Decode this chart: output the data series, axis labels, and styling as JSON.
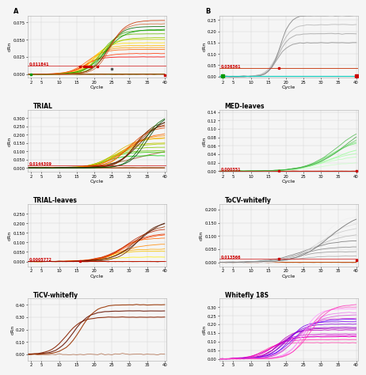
{
  "panels": [
    {
      "title": "",
      "label": "A",
      "ylabel": "dRn",
      "ylim": [
        -0.005,
        0.085
      ],
      "yticks": [
        0.0,
        0.025,
        0.05,
        0.075
      ],
      "ytick_labels": [
        "0.000",
        "0.025",
        "0.050",
        "0.075"
      ],
      "threshold_val": 0.011841,
      "threshold_label": "0.011841",
      "threshold_color": "#cc0000",
      "show_xlabel": true,
      "curve_type": "panel_A"
    },
    {
      "title": "",
      "label": "B",
      "ylabel": "dRn",
      "ylim": [
        -0.005,
        0.27
      ],
      "yticks": [
        0.0,
        0.05,
        0.1,
        0.15,
        0.2,
        0.25
      ],
      "ytick_labels": [
        "0.00",
        "0.05",
        "0.10",
        "0.15",
        "0.20",
        "0.25"
      ],
      "threshold_val": 0.036361,
      "threshold_label": "0.036361",
      "threshold_color": "#cc0000",
      "show_xlabel": true,
      "curve_type": "panel_B"
    },
    {
      "title": "TRIAL",
      "label": "",
      "ylabel": "dRn",
      "ylim": [
        -0.025,
        0.35
      ],
      "yticks": [
        0.0,
        0.05,
        0.1,
        0.15,
        0.2,
        0.25,
        0.3
      ],
      "ytick_labels": [
        "0.000",
        "0.050",
        "0.100",
        "0.150",
        "0.200",
        "0.250",
        "0.300"
      ],
      "threshold_val": 0.0144309,
      "threshold_label": "0.0144309",
      "threshold_color": "#cc0000",
      "show_xlabel": true,
      "curve_type": "panel_TRIAL"
    },
    {
      "title": "MED-leaves",
      "label": "",
      "ylabel": "dRn",
      "ylim": [
        -0.002,
        0.145
      ],
      "yticks": [
        0.0,
        0.02,
        0.04,
        0.06,
        0.08,
        0.1,
        0.12,
        0.14
      ],
      "ytick_labels": [
        "0.00",
        "0.02",
        "0.04",
        "0.06",
        "0.08",
        "0.10",
        "0.12",
        "0.14"
      ],
      "threshold_val": 0.000351,
      "threshold_label": "0.000351",
      "threshold_color": "#cc0000",
      "show_xlabel": true,
      "curve_type": "panel_MED"
    },
    {
      "title": "TRIAL-leaves",
      "label": "",
      "ylabel": "dRn",
      "ylim": [
        -0.025,
        0.3
      ],
      "yticks": [
        0.0,
        0.05,
        0.1,
        0.15,
        0.2,
        0.25
      ],
      "ytick_labels": [
        "0.000",
        "0.050",
        "0.100",
        "0.150",
        "0.200",
        "0.250"
      ],
      "threshold_val": 0.0005772,
      "threshold_label": "0.0005772",
      "threshold_color": "#cc0000",
      "show_xlabel": true,
      "curve_type": "panel_TRIALleaves"
    },
    {
      "title": "ToCV-whitefly",
      "label": "",
      "ylabel": "dRn",
      "ylim": [
        -0.015,
        0.22
      ],
      "yticks": [
        0.0,
        0.05,
        0.1,
        0.15,
        0.2
      ],
      "ytick_labels": [
        "0.000",
        "0.050",
        "0.100",
        "0.150",
        "0.200"
      ],
      "threshold_val": 0.013566,
      "threshold_label": "0.013566",
      "threshold_color": "#cc0000",
      "show_xlabel": true,
      "curve_type": "panel_ToCV"
    },
    {
      "title": "TiCV-whitefly",
      "label": "",
      "ylabel": "dRn",
      "ylim": [
        -0.05,
        0.45
      ],
      "yticks": [
        0.0,
        0.1,
        0.2,
        0.3,
        0.4
      ],
      "ytick_labels": [
        "0.00",
        "0.10",
        "0.20",
        "0.30",
        "0.40"
      ],
      "threshold_val": null,
      "threshold_label": "",
      "threshold_color": "#cc0000",
      "show_xlabel": false,
      "curve_type": "panel_TiCV"
    },
    {
      "title": "Whitefly 18S",
      "label": "",
      "ylabel": "dRn",
      "ylim": [
        -0.01,
        0.35
      ],
      "yticks": [
        0.0,
        0.05,
        0.1,
        0.15,
        0.2,
        0.25,
        0.3
      ],
      "ytick_labels": [
        "0.00",
        "0.05",
        "0.10",
        "0.15",
        "0.20",
        "0.25",
        "0.30"
      ],
      "threshold_val": null,
      "threshold_label": "",
      "threshold_color": "#cc0000",
      "show_xlabel": false,
      "curve_type": "panel_18S"
    }
  ],
  "n_cycles": 40,
  "background_color": "#f5f5f5",
  "grid_color": "#cccccc",
  "axis_label_fontsize": 4.5,
  "title_fontsize": 5.5,
  "tick_fontsize": 3.8
}
